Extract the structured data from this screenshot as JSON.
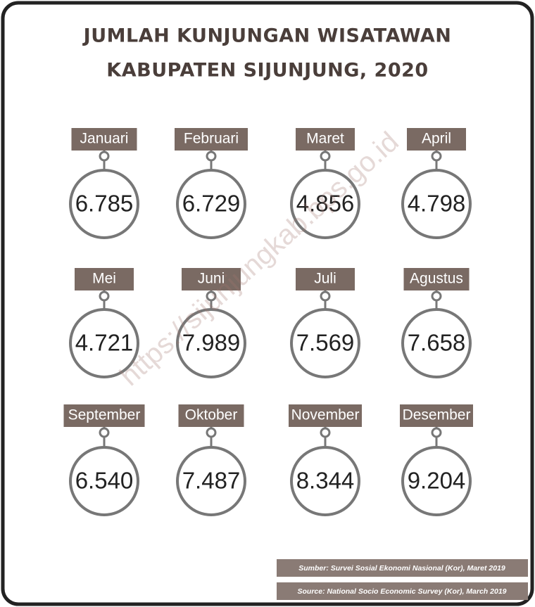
{
  "header": {
    "title_lines": [
      "JUMLAH KUNJUNGAN WISATAWAN",
      "KABUPATEN SIJUNJUNG, 2020"
    ]
  },
  "months": [
    {
      "label": "Januari",
      "value": "6.785"
    },
    {
      "label": "Februari",
      "value": "6.729"
    },
    {
      "label": "Maret",
      "value": "4.856"
    },
    {
      "label": "April",
      "value": "4.798"
    },
    {
      "label": "Mei",
      "value": "4.721"
    },
    {
      "label": "Juni",
      "value": "7.989"
    },
    {
      "label": "Juli",
      "value": "7.569"
    },
    {
      "label": "Agustus",
      "value": "7.658"
    },
    {
      "label": "September",
      "value": "6.540"
    },
    {
      "label": "Oktober",
      "value": "7.487"
    },
    {
      "label": "November",
      "value": "8.344"
    },
    {
      "label": "Desember",
      "value": "9.204"
    }
  ],
  "footer": {
    "sources": [
      "Sumber: Survei Sosial Ekonomi Nasional (Kor), Maret 2019",
      "Source: National Socio Economic Survey (Kor), March 2019"
    ]
  },
  "watermark": "https://sijunjungkab.bps.go.id"
}
